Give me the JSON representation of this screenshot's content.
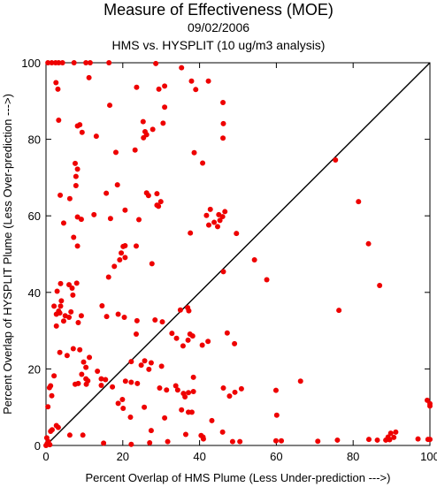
{
  "header": {
    "title": "Measure of Effectiveness (MOE)",
    "date": "09/02/2006",
    "comparison": "HMS vs. HYSPLIT  (10 ug/m3 analysis)"
  },
  "chart_data": {
    "type": "scatter",
    "xlabel": "Percent Overlap of HMS Plume (Less Under-prediction --->)",
    "ylabel": "Percent Overlap of HYSPLIT Plume (Less Over-prediction --->)",
    "xlim": [
      0,
      100
    ],
    "ylim": [
      0,
      100
    ],
    "xticks": [
      0,
      20,
      40,
      60,
      80,
      100
    ],
    "yticks": [
      0,
      20,
      40,
      60,
      80,
      100
    ],
    "diagonal_reference": true,
    "grid": false,
    "point_color": "#ee0000",
    "points": [
      [
        0.5,
        100
      ],
      [
        1.5,
        100
      ],
      [
        2.5,
        100
      ],
      [
        3.3,
        100
      ],
      [
        4.3,
        100
      ],
      [
        7.3,
        100
      ],
      [
        10.4,
        100
      ],
      [
        11.5,
        100
      ],
      [
        16.4,
        100
      ],
      [
        28.6,
        99.8
      ],
      [
        2.6,
        94.8
      ],
      [
        3.1,
        93.1
      ],
      [
        29.4,
        93.1
      ],
      [
        11.2,
        96.1
      ],
      [
        35.3,
        98.7
      ],
      [
        37.9,
        95.2
      ],
      [
        42.3,
        95.2
      ],
      [
        39.0,
        93.0
      ],
      [
        23.6,
        93.6
      ],
      [
        30.9,
        93.9
      ],
      [
        16.6,
        88.9
      ],
      [
        30.9,
        88.4
      ],
      [
        46.1,
        89.6
      ],
      [
        3.3,
        85.0
      ],
      [
        8.8,
        83.8
      ],
      [
        8.2,
        83.5
      ],
      [
        25.3,
        84.6
      ],
      [
        25.8,
        82.0
      ],
      [
        27.8,
        82.6
      ],
      [
        25.4,
        80.4
      ],
      [
        26.2,
        81.2
      ],
      [
        30.5,
        84.2
      ],
      [
        46.2,
        84.1
      ],
      [
        9.4,
        81.8
      ],
      [
        13.1,
        80.8
      ],
      [
        23.2,
        77.2
      ],
      [
        46.1,
        80.3
      ],
      [
        38.6,
        76.5
      ],
      [
        40.8,
        73.8
      ],
      [
        7.6,
        73.7
      ],
      [
        8.2,
        72.2
      ],
      [
        7.8,
        70.3
      ],
      [
        18.2,
        76.6
      ],
      [
        15.7,
        65.9
      ],
      [
        18.6,
        68.1
      ],
      [
        20.6,
        61.5
      ],
      [
        26.2,
        66.0
      ],
      [
        26.7,
        65.3
      ],
      [
        28.9,
        65.8
      ],
      [
        28.9,
        62.8
      ],
      [
        29.9,
        63.7
      ],
      [
        29.3,
        62.5
      ],
      [
        7.8,
        67.9
      ],
      [
        6.2,
        64.5
      ],
      [
        3.7,
        65.4
      ],
      [
        8.2,
        59.7
      ],
      [
        9.2,
        59.1
      ],
      [
        12.5,
        60.3
      ],
      [
        4.6,
        58.1
      ],
      [
        16.8,
        59.3
      ],
      [
        24.2,
        59.0
      ],
      [
        41.8,
        60.1
      ],
      [
        43.8,
        58.3
      ],
      [
        42.8,
        61.7
      ],
      [
        45.0,
        60.3
      ],
      [
        46.6,
        61.1
      ],
      [
        45.3,
        58.8
      ],
      [
        46.0,
        59.8
      ],
      [
        44.7,
        57.2
      ],
      [
        42.4,
        57.6
      ],
      [
        49.6,
        55.4
      ],
      [
        37.6,
        55.5
      ],
      [
        7.2,
        54.4
      ],
      [
        8.2,
        52.1
      ],
      [
        19.6,
        50.3
      ],
      [
        20.1,
        52.0
      ],
      [
        20.6,
        52.2
      ],
      [
        19.2,
        48.5
      ],
      [
        23.5,
        52.1
      ],
      [
        20.6,
        49.1
      ],
      [
        27.6,
        47.5
      ],
      [
        16.3,
        44.0
      ],
      [
        17.8,
        46.8
      ],
      [
        3.8,
        42.3
      ],
      [
        2.9,
        40.3
      ],
      [
        6.0,
        42.0
      ],
      [
        6.8,
        41.1
      ],
      [
        7.0,
        39.3
      ],
      [
        8.0,
        42.4
      ],
      [
        46.2,
        45.4
      ],
      [
        54.3,
        48.5
      ],
      [
        57.5,
        43.3
      ],
      [
        86.9,
        41.8
      ],
      [
        81.4,
        63.7
      ],
      [
        84.0,
        52.7
      ],
      [
        75.4,
        74.6
      ],
      [
        2.1,
        36.4
      ],
      [
        2.7,
        34.3
      ],
      [
        3.3,
        35.1
      ],
      [
        3.8,
        36.4
      ],
      [
        4.0,
        37.8
      ],
      [
        3.6,
        34.6
      ],
      [
        5.0,
        33.9
      ],
      [
        4.6,
        32.5
      ],
      [
        2.7,
        31.2
      ],
      [
        6.0,
        33.5
      ],
      [
        6.5,
        34.9
      ],
      [
        9.2,
        33.9
      ],
      [
        8.4,
        32.1
      ],
      [
        14.6,
        36.5
      ],
      [
        15.8,
        33.7
      ],
      [
        18.8,
        34.3
      ],
      [
        20.4,
        33.5
      ],
      [
        23.7,
        32.6
      ],
      [
        28.4,
        32.8
      ],
      [
        23.5,
        29.1
      ],
      [
        30.3,
        32.3
      ],
      [
        35.0,
        35.4
      ],
      [
        36.9,
        36.0
      ],
      [
        37.2,
        35.2
      ],
      [
        32.8,
        29.3
      ],
      [
        34.0,
        28.0
      ],
      [
        37.5,
        29.1
      ],
      [
        38.2,
        28.6
      ],
      [
        37.0,
        27.5
      ],
      [
        35.7,
        26.0
      ],
      [
        40.7,
        26.2
      ],
      [
        42.2,
        27.2
      ],
      [
        49.1,
        26.6
      ],
      [
        47.2,
        29.4
      ],
      [
        76.3,
        35.3
      ],
      [
        7.1,
        25.3
      ],
      [
        5.5,
        23.5
      ],
      [
        8.8,
        25.0
      ],
      [
        9.8,
        21.8
      ],
      [
        10.4,
        20.4
      ],
      [
        9.3,
        18.6
      ],
      [
        10.4,
        17.4
      ],
      [
        10.5,
        16.0
      ],
      [
        10.9,
        16.9
      ],
      [
        8.4,
        16.2
      ],
      [
        7.6,
        16.0
      ],
      [
        3.6,
        24.3
      ],
      [
        11.3,
        23.0
      ],
      [
        13.4,
        19.4
      ],
      [
        14.4,
        17.4
      ],
      [
        14.4,
        15.7
      ],
      [
        15.5,
        17.2
      ],
      [
        17.3,
        15.3
      ],
      [
        19.9,
        12.0
      ],
      [
        20.1,
        9.7
      ],
      [
        20.7,
        16.8
      ],
      [
        22.2,
        21.9
      ],
      [
        22.2,
        16.5
      ],
      [
        24.8,
        21.0
      ],
      [
        25.7,
        22.1
      ],
      [
        27.4,
        21.6
      ],
      [
        30.1,
        20.7
      ],
      [
        26.8,
        19.9
      ],
      [
        23.8,
        16.2
      ],
      [
        25.6,
        10.0
      ],
      [
        29.6,
        15.0
      ],
      [
        31.4,
        14.5
      ],
      [
        33.8,
        15.6
      ],
      [
        34.3,
        14.5
      ],
      [
        35.8,
        13.6
      ],
      [
        37.1,
        13.8
      ],
      [
        35.3,
        9.3
      ],
      [
        37.1,
        8.7
      ],
      [
        38.0,
        8.7
      ],
      [
        36.2,
        12.7
      ],
      [
        38.4,
        17.8
      ],
      [
        38.4,
        14.1
      ],
      [
        46.2,
        15.0
      ],
      [
        47.8,
        12.9
      ],
      [
        49.2,
        13.9
      ],
      [
        50.9,
        14.8
      ],
      [
        59.9,
        14.4
      ],
      [
        60.1,
        7.9
      ],
      [
        66.3,
        16.8
      ],
      [
        0.9,
        15.1
      ],
      [
        1.2,
        15.6
      ],
      [
        0.5,
        10.1
      ],
      [
        2.1,
        18.2
      ],
      [
        1.5,
        13.0
      ],
      [
        1.6,
        4.1
      ],
      [
        2.7,
        5.2
      ],
      [
        3.2,
        4.7
      ],
      [
        1.2,
        3.7
      ],
      [
        6.2,
        2.7
      ],
      [
        9.6,
        2.7
      ],
      [
        18.8,
        11.0
      ],
      [
        22.0,
        7.4
      ],
      [
        27.4,
        3.9
      ],
      [
        30.9,
        7.2
      ],
      [
        36.4,
        2.9
      ],
      [
        43.2,
        6.5
      ],
      [
        40.4,
        2.6
      ],
      [
        46.0,
        3.5
      ],
      [
        41.0,
        1.7
      ],
      [
        40.9,
        2.2
      ],
      [
        48.6,
        1.0
      ],
      [
        50.5,
        1.0
      ],
      [
        59.9,
        1.2
      ],
      [
        70.8,
        1.1
      ],
      [
        75.9,
        1.4
      ],
      [
        84.1,
        1.6
      ],
      [
        86.3,
        1.4
      ],
      [
        88.5,
        1.4
      ],
      [
        89.1,
        2.2
      ],
      [
        89.5,
        1.5
      ],
      [
        89.8,
        3.2
      ],
      [
        90.6,
        2.1
      ],
      [
        91.1,
        3.5
      ],
      [
        96.9,
        1.7
      ],
      [
        99.3,
        11.8
      ],
      [
        100,
        10.3
      ],
      [
        100,
        10.9
      ],
      [
        99.5,
        1.6
      ],
      [
        100,
        1.6
      ],
      [
        0,
        0
      ],
      [
        0.3,
        0.5
      ],
      [
        0.6,
        1.0
      ],
      [
        0.2,
        2.0
      ],
      [
        1.0,
        0.2
      ],
      [
        22.2,
        0.3
      ],
      [
        27.0,
        0.7
      ],
      [
        31.7,
        1.0
      ],
      [
        15.0,
        0.6
      ],
      [
        61.3,
        1.2
      ]
    ]
  }
}
